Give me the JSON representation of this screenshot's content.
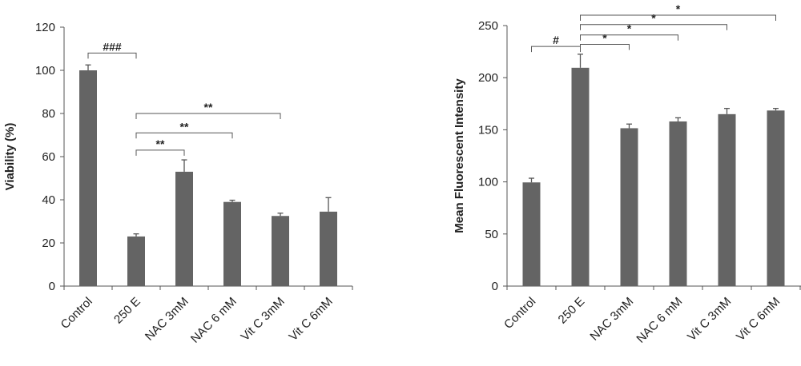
{
  "colors": {
    "bar": "#646464",
    "axis": "#555555",
    "text": "#222222"
  },
  "chart_data": [
    {
      "type": "bar",
      "title": "",
      "xlabel": "",
      "ylabel": "Viability (%)",
      "ylim": [
        0,
        120
      ],
      "yticks": [
        0,
        20,
        40,
        60,
        80,
        100,
        120
      ],
      "grid": false,
      "categories": [
        "Control",
        "250 E",
        "NAC 3mM",
        "NAC 6 mM",
        "Vit C 3mM",
        "Vit C 6mM"
      ],
      "values": [
        100,
        23,
        53,
        39,
        32.5,
        34.5
      ],
      "errors": [
        2.5,
        1.2,
        5.5,
        0.8,
        1.3,
        6.5
      ],
      "significance": [
        {
          "from": 0,
          "to": 1,
          "label": "###",
          "y": 108
        },
        {
          "from": 1,
          "to": 2,
          "label": "**",
          "y": 63
        },
        {
          "from": 1,
          "to": 3,
          "label": "**",
          "y": 71
        },
        {
          "from": 1,
          "to": 4,
          "label": "**",
          "y": 80
        }
      ]
    },
    {
      "type": "bar",
      "title": "",
      "xlabel": "",
      "ylabel": "Mean Fluorescent Intensity",
      "ylim": [
        0,
        250
      ],
      "yticks": [
        0,
        50,
        100,
        150,
        200,
        250
      ],
      "grid": false,
      "categories": [
        "Control",
        "250 E",
        "NAC 3mM",
        "NAC 6 mM",
        "Vit C 3mM",
        "Vit C 6mM"
      ],
      "values": [
        99.5,
        209.5,
        151.5,
        158,
        165,
        168.5
      ],
      "errors": [
        4,
        13,
        4,
        3.5,
        5.5,
        2
      ],
      "significance": [
        {
          "from": 0,
          "to": 1,
          "label": "#",
          "y": 230
        },
        {
          "from": 1,
          "to": 2,
          "label": "*",
          "y": 232
        },
        {
          "from": 1,
          "to": 3,
          "label": "*",
          "y": 241
        },
        {
          "from": 1,
          "to": 4,
          "label": "*",
          "y": 251
        },
        {
          "from": 1,
          "to": 5,
          "label": "*",
          "y": 260
        }
      ]
    }
  ]
}
